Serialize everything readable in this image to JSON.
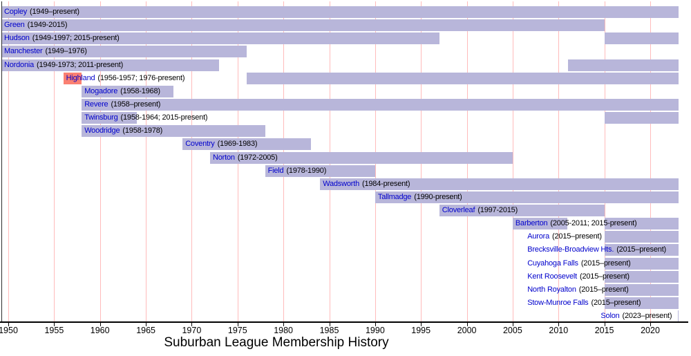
{
  "title": "Suburban League Membership History",
  "chart_data": {
    "type": "bar",
    "subtype": "gantt-membership-timeline",
    "title": "Suburban League Membership History",
    "x_axis": {
      "min": 1949,
      "max": 2023.2,
      "grid": true,
      "tick_years": [
        1950,
        1955,
        1960,
        1965,
        1970,
        1975,
        1980,
        1985,
        1990,
        1995,
        2000,
        2005,
        2010,
        2015,
        2020
      ],
      "tick_labels": [
        "1950",
        "1955",
        "1960",
        "1965",
        "1970",
        "1975",
        "1980",
        "1985",
        "1990",
        "1995",
        "2000",
        "2005",
        "2010",
        "2015",
        "2020"
      ]
    },
    "present_year": 2023.2,
    "colors": {
      "bar": "#b8b6da",
      "highlight": "#fa8072",
      "gridline": "#ffbbbb",
      "team_link": "#0000cc",
      "axis": "#000000"
    },
    "rows": [
      {
        "name": "Copley",
        "years": "(1949–present)",
        "label_year": 1949,
        "segments": [
          {
            "from": 1949,
            "to": "present"
          }
        ]
      },
      {
        "name": "Green",
        "years": "(1949-2015)",
        "label_year": 1949,
        "segments": [
          {
            "from": 1949,
            "to": 2015
          }
        ]
      },
      {
        "name": "Hudson",
        "years": "(1949-1997; 2015-present)",
        "label_year": 1949,
        "segments": [
          {
            "from": 1949,
            "to": 1997
          },
          {
            "from": 2015,
            "to": "present"
          }
        ]
      },
      {
        "name": "Manchester",
        "years": "(1949–1976)",
        "label_year": 1949,
        "segments": [
          {
            "from": 1949,
            "to": 1976
          }
        ]
      },
      {
        "name": "Nordonia",
        "years": "(1949-1973; 2011-present)",
        "label_year": 1949,
        "segments": [
          {
            "from": 1949,
            "to": 1973
          },
          {
            "from": 2011,
            "to": "present"
          }
        ]
      },
      {
        "name": "Highland",
        "years": "(1956-1957; 1976-present)",
        "label_year": 1956,
        "segments": [
          {
            "from": 1956,
            "to": 1958,
            "highlight": true
          },
          {
            "from": 1976,
            "to": "present"
          }
        ]
      },
      {
        "name": "Mogadore",
        "years": "(1958-1968)",
        "label_year": 1958,
        "segments": [
          {
            "from": 1958,
            "to": 1968
          }
        ]
      },
      {
        "name": "Revere",
        "years": "(1958–present)",
        "label_year": 1958,
        "segments": [
          {
            "from": 1958,
            "to": "present"
          }
        ]
      },
      {
        "name": "Twinsburg",
        "years": "(1958-1964; 2015-present)",
        "label_year": 1958,
        "segments": [
          {
            "from": 1958,
            "to": 1964
          },
          {
            "from": 2015,
            "to": "present"
          }
        ]
      },
      {
        "name": "Woodridge",
        "years": "(1958-1978)",
        "label_year": 1958,
        "segments": [
          {
            "from": 1958,
            "to": 1978
          }
        ]
      },
      {
        "name": "Coventry",
        "years": "(1969-1983)",
        "label_year": 1969,
        "segments": [
          {
            "from": 1969,
            "to": 1983
          }
        ]
      },
      {
        "name": "Norton",
        "years": "(1972-2005)",
        "label_year": 1972,
        "segments": [
          {
            "from": 1972,
            "to": 2005
          }
        ]
      },
      {
        "name": "Field",
        "years": "(1978-1990)",
        "label_year": 1978,
        "segments": [
          {
            "from": 1978,
            "to": 1990
          }
        ]
      },
      {
        "name": "Wadsworth",
        "years": "(1984-present)",
        "label_year": 1984,
        "segments": [
          {
            "from": 1984,
            "to": "present"
          }
        ]
      },
      {
        "name": "Tallmadge",
        "years": "(1990-present)",
        "label_year": 1990,
        "segments": [
          {
            "from": 1990,
            "to": "present"
          }
        ]
      },
      {
        "name": "Cloverleaf",
        "years": "(1997-2015)",
        "label_year": 1997,
        "segments": [
          {
            "from": 1997,
            "to": 2015
          }
        ]
      },
      {
        "name": "Barberton",
        "years": "(2005-2011; 2015-present)",
        "label_year": 2005,
        "segments": [
          {
            "from": 2005,
            "to": 2011
          },
          {
            "from": 2015,
            "to": "present"
          }
        ]
      },
      {
        "name": "Aurora",
        "years": "(2015–present)",
        "label_year": 2006.3,
        "segments": [
          {
            "from": 2015,
            "to": "present"
          }
        ]
      },
      {
        "name": "Brecksville-Broadview Hts.",
        "years": "(2015–present)",
        "label_year": 2006.3,
        "segments": [
          {
            "from": 2015,
            "to": "present"
          }
        ]
      },
      {
        "name": "Cuyahoga Falls",
        "years": "(2015–present)",
        "label_year": 2006.3,
        "segments": [
          {
            "from": 2015,
            "to": "present"
          }
        ]
      },
      {
        "name": "Kent Roosevelt",
        "years": "(2015–present)",
        "label_year": 2006.3,
        "segments": [
          {
            "from": 2015,
            "to": "present"
          }
        ]
      },
      {
        "name": "North Royalton",
        "years": "(2015–present)",
        "label_year": 2006.3,
        "segments": [
          {
            "from": 2015,
            "to": "present"
          }
        ]
      },
      {
        "name": "Stow-Munroe Falls",
        "years": "(2015–present)",
        "label_year": 2006.3,
        "segments": [
          {
            "from": 2015,
            "to": "present"
          }
        ]
      },
      {
        "name": "Solon",
        "years": "(2023–present)",
        "label_year": 2014.3,
        "segments": [
          {
            "from": 2023,
            "to": "present"
          }
        ]
      }
    ]
  }
}
